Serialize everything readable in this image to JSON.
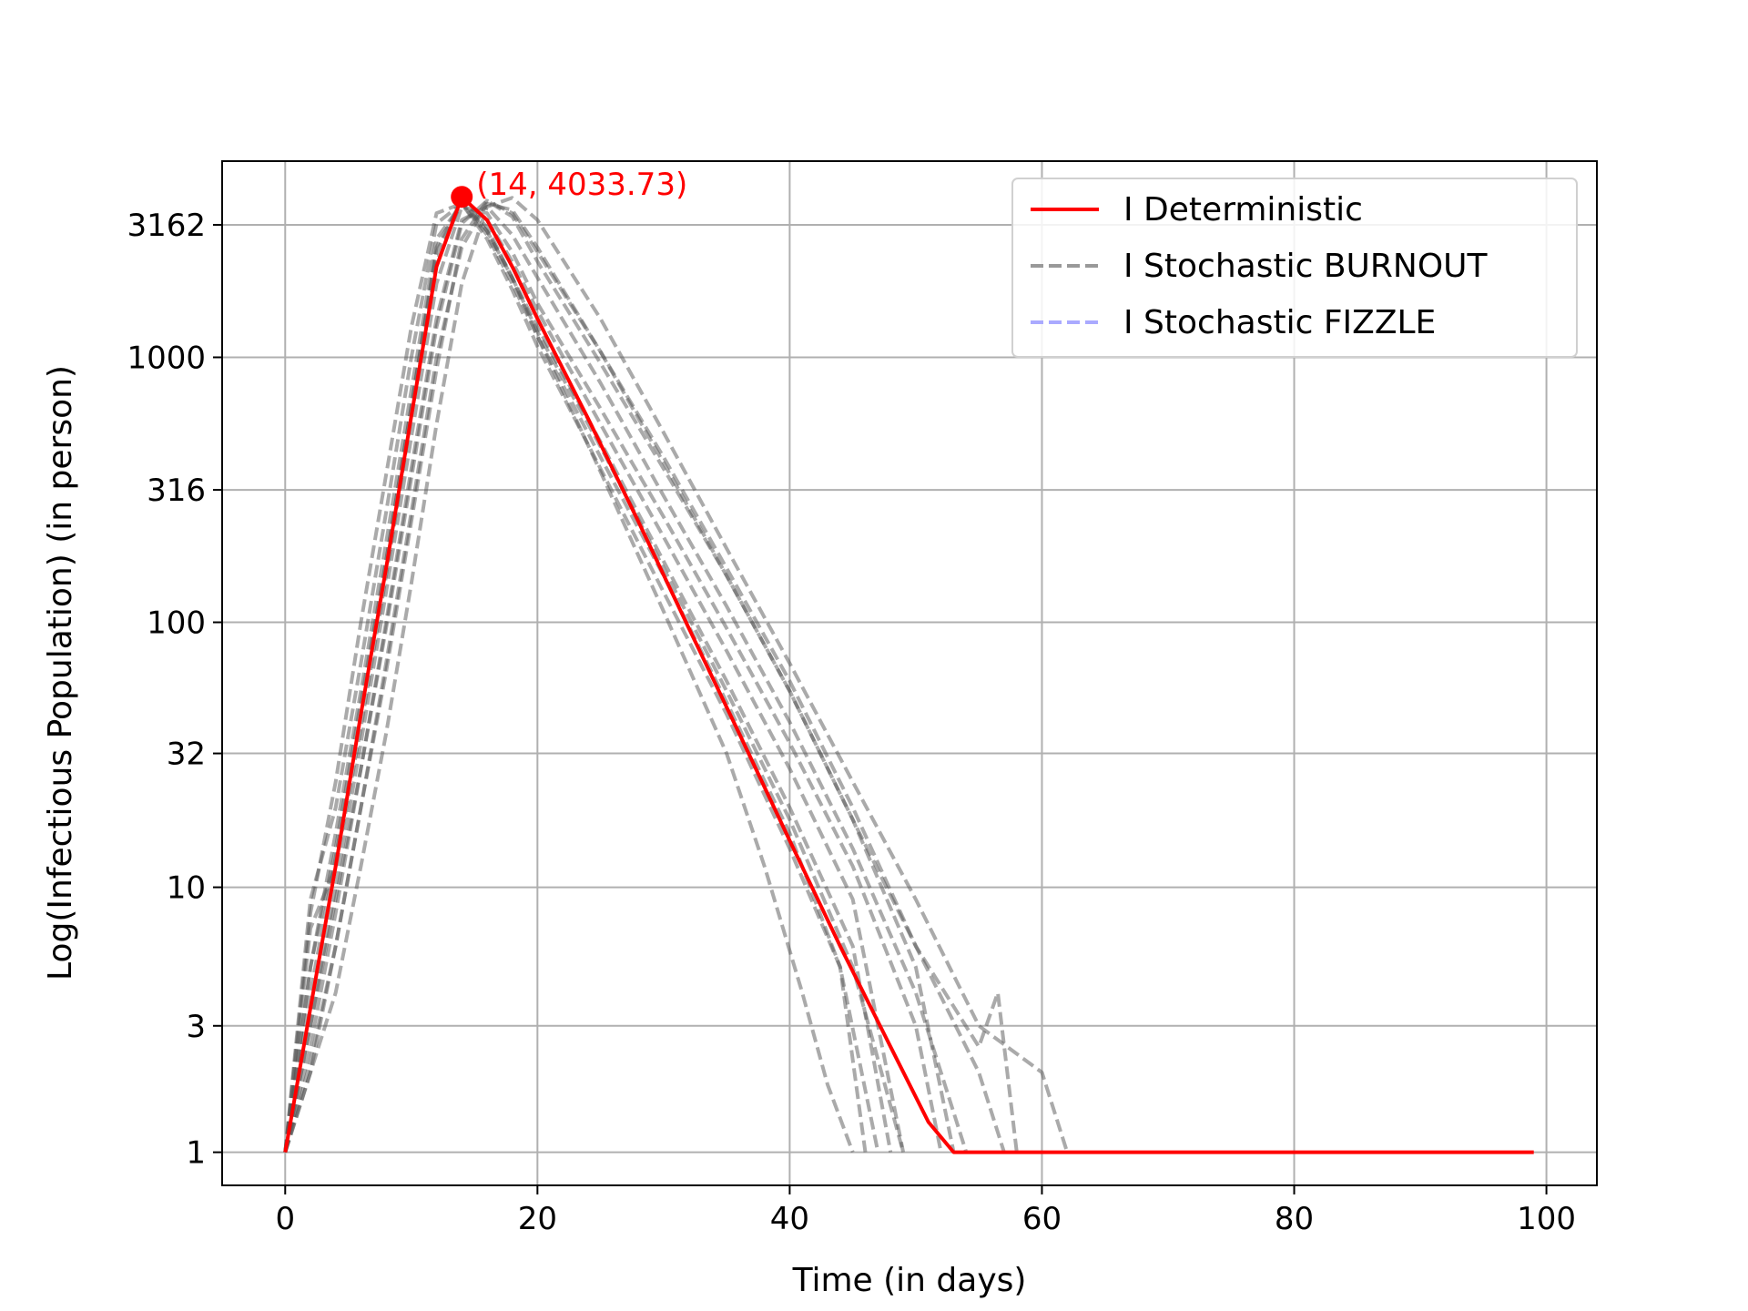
{
  "chart_data": {
    "type": "line",
    "xlabel": "Time (in days)",
    "ylabel": "Log(Infectious Population) (in person)",
    "xlim": [
      -5,
      104
    ],
    "ylim": [
      0.75,
      5500
    ],
    "yscale": "log",
    "grid": true,
    "legend_position": "top-right",
    "x_ticks": [
      0,
      20,
      40,
      60,
      80,
      100
    ],
    "x_tick_labels": [
      "0",
      "20",
      "40",
      "60",
      "80",
      "100"
    ],
    "y_ticks": [
      1,
      3,
      10,
      32,
      100,
      316,
      1000,
      3162
    ],
    "y_tick_labels": [
      "1",
      "3",
      "10",
      "32",
      "100",
      "316",
      "1000",
      "3162"
    ],
    "legend": [
      {
        "label": "I Deterministic",
        "color": "#ff0000",
        "style": "solid"
      },
      {
        "label": "I Stochastic BURNOUT",
        "color": "#999999",
        "style": "dashed"
      },
      {
        "label": "I Stochastic FIZZLE",
        "color": "#aaaaff",
        "style": "dashed"
      }
    ],
    "annotation": {
      "text": "(14, 4033.73)",
      "x": 14,
      "y": 4033.73,
      "color": "#ff0000"
    },
    "series": [
      {
        "name": "I Deterministic",
        "color": "#ff0000",
        "x": [
          0,
          2,
          4,
          6,
          8,
          10,
          12,
          14,
          16,
          18,
          20,
          24,
          28,
          32,
          36,
          40,
          44,
          48,
          51,
          53,
          99
        ],
        "y": [
          1,
          3.5,
          12,
          45,
          160,
          600,
          2200,
          4033.73,
          3300,
          2200,
          1400,
          590,
          240,
          95,
          38,
          15,
          6,
          2.5,
          1.3,
          1,
          1
        ]
      },
      {
        "name": "",
        "color": "#555555",
        "x": [
          0,
          2,
          4,
          6,
          8,
          10,
          12,
          14,
          16,
          18,
          20,
          25,
          30,
          35,
          40,
          45,
          49
        ],
        "y": [
          1,
          5,
          14,
          50,
          170,
          650,
          2500,
          3900,
          3300,
          2300,
          1500,
          560,
          210,
          78,
          28,
          9,
          1
        ]
      },
      {
        "name": "",
        "color": "#555555",
        "x": [
          0,
          2,
          4,
          6,
          8,
          10,
          12,
          14,
          16,
          18,
          20,
          25,
          30,
          35,
          40,
          45,
          50,
          53
        ],
        "y": [
          1,
          2,
          6,
          20,
          70,
          260,
          1000,
          2600,
          3800,
          3600,
          2600,
          1050,
          400,
          150,
          55,
          18,
          5,
          1
        ]
      },
      {
        "name": "",
        "color": "#555555",
        "x": [
          0,
          2,
          4,
          6,
          8,
          10,
          12,
          14,
          16,
          18,
          20,
          25,
          30,
          35,
          40,
          44,
          47
        ],
        "y": [
          1,
          8,
          25,
          100,
          360,
          1300,
          3500,
          3800,
          2800,
          1800,
          1100,
          380,
          130,
          45,
          14,
          5,
          1
        ]
      },
      {
        "name": "",
        "color": "#555555",
        "x": [
          0,
          2,
          4,
          6,
          8,
          10,
          12,
          14,
          16,
          18,
          20,
          25,
          30,
          35,
          40,
          45,
          50,
          55,
          56.5,
          58
        ],
        "y": [
          1,
          3,
          9,
          28,
          95,
          350,
          1300,
          3200,
          3900,
          3400,
          2300,
          950,
          380,
          150,
          55,
          18,
          6,
          2.5,
          4,
          1
        ]
      },
      {
        "name": "",
        "color": "#555555",
        "x": [
          0,
          2,
          4,
          6,
          8,
          10,
          12,
          14,
          16,
          18,
          20,
          25,
          30,
          35,
          38,
          41,
          43,
          45
        ],
        "y": [
          1,
          7,
          12,
          40,
          150,
          600,
          2300,
          3900,
          3100,
          2000,
          1200,
          370,
          110,
          32,
          12,
          4,
          1.8,
          1
        ]
      },
      {
        "name": "",
        "color": "#555555",
        "x": [
          0,
          2,
          4,
          6,
          8,
          10,
          12,
          14,
          16,
          18,
          20,
          25,
          30,
          35,
          40,
          45,
          50,
          55,
          60,
          62
        ],
        "y": [
          1,
          2,
          4,
          12,
          38,
          140,
          560,
          1900,
          3700,
          4000,
          3300,
          1400,
          520,
          190,
          70,
          25,
          9,
          3,
          2,
          1
        ]
      },
      {
        "name": "",
        "color": "#555555",
        "x": [
          0,
          2,
          4,
          6,
          8,
          10,
          12,
          14,
          16,
          18,
          20,
          25,
          30,
          35,
          40,
          45,
          48
        ],
        "y": [
          1,
          4,
          13,
          45,
          170,
          650,
          2600,
          3900,
          3000,
          2000,
          1300,
          480,
          170,
          60,
          20,
          6,
          1
        ]
      },
      {
        "name": "",
        "color": "#555555",
        "x": [
          0,
          2,
          4,
          6,
          8,
          10,
          12,
          14,
          16,
          18,
          20,
          25,
          30,
          35,
          40,
          45,
          50,
          52
        ],
        "y": [
          1,
          3,
          10,
          35,
          130,
          500,
          1900,
          3700,
          3500,
          2500,
          1600,
          640,
          250,
          95,
          35,
          12,
          3,
          1
        ]
      },
      {
        "name": "",
        "color": "#555555",
        "x": [
          0,
          2,
          4,
          6,
          8,
          10,
          12,
          14,
          16,
          18,
          20,
          25,
          30,
          35,
          40,
          45,
          50,
          54
        ],
        "y": [
          1,
          2.5,
          8,
          28,
          100,
          380,
          1400,
          3300,
          3700,
          2900,
          2000,
          800,
          300,
          115,
          42,
          14,
          4,
          1
        ]
      },
      {
        "name": "",
        "color": "#555555",
        "x": [
          0,
          2,
          4,
          6,
          8,
          10,
          12,
          14,
          16,
          18,
          20,
          25,
          30,
          35,
          40,
          44,
          46
        ],
        "y": [
          1,
          9,
          20,
          70,
          260,
          1000,
          3200,
          3800,
          2900,
          1900,
          1200,
          420,
          150,
          50,
          16,
          5,
          1
        ]
      },
      {
        "name": "",
        "color": "#555555",
        "x": [
          0,
          2,
          4,
          6,
          8,
          10,
          12,
          14,
          16,
          18,
          20,
          25,
          30,
          35,
          40,
          45,
          50,
          55,
          57
        ],
        "y": [
          1,
          2.2,
          6,
          20,
          65,
          240,
          900,
          2800,
          3900,
          3500,
          2500,
          1050,
          420,
          160,
          60,
          20,
          6,
          2,
          1
        ]
      },
      {
        "name": "",
        "color": "#555555",
        "x": [
          0,
          2,
          4,
          6,
          8,
          10,
          12,
          14,
          16,
          18,
          20,
          25,
          30,
          35,
          40,
          45,
          49
        ],
        "y": [
          1,
          5,
          16,
          55,
          200,
          750,
          2800,
          3800,
          3000,
          2000,
          1250,
          460,
          160,
          55,
          18,
          5,
          1
        ]
      }
    ]
  }
}
